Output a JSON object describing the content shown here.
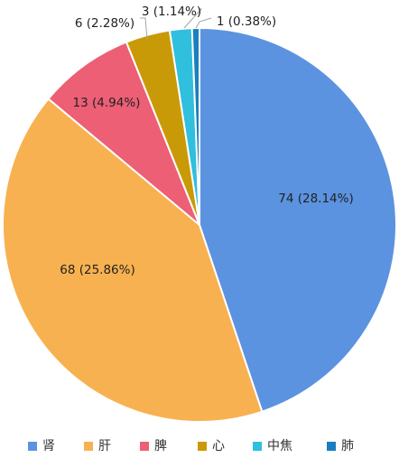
{
  "chart_data": {
    "type": "pie",
    "categories": [
      "肾",
      "肝",
      "脾",
      "心",
      "中焦",
      "肺"
    ],
    "values": [
      74,
      68,
      13,
      6,
      3,
      1
    ],
    "data_labels": [
      "74 (28.14%)",
      "68 (25.86%)",
      "13 (4.94%)",
      "6 (2.28%)",
      "3 (1.14%)",
      "1 (0.38%)"
    ],
    "colors": [
      "#5b93e0",
      "#f8b150",
      "#ec5f75",
      "#c99a07",
      "#30bfdd",
      "#1a7fc0"
    ],
    "legend_position": "bottom"
  }
}
